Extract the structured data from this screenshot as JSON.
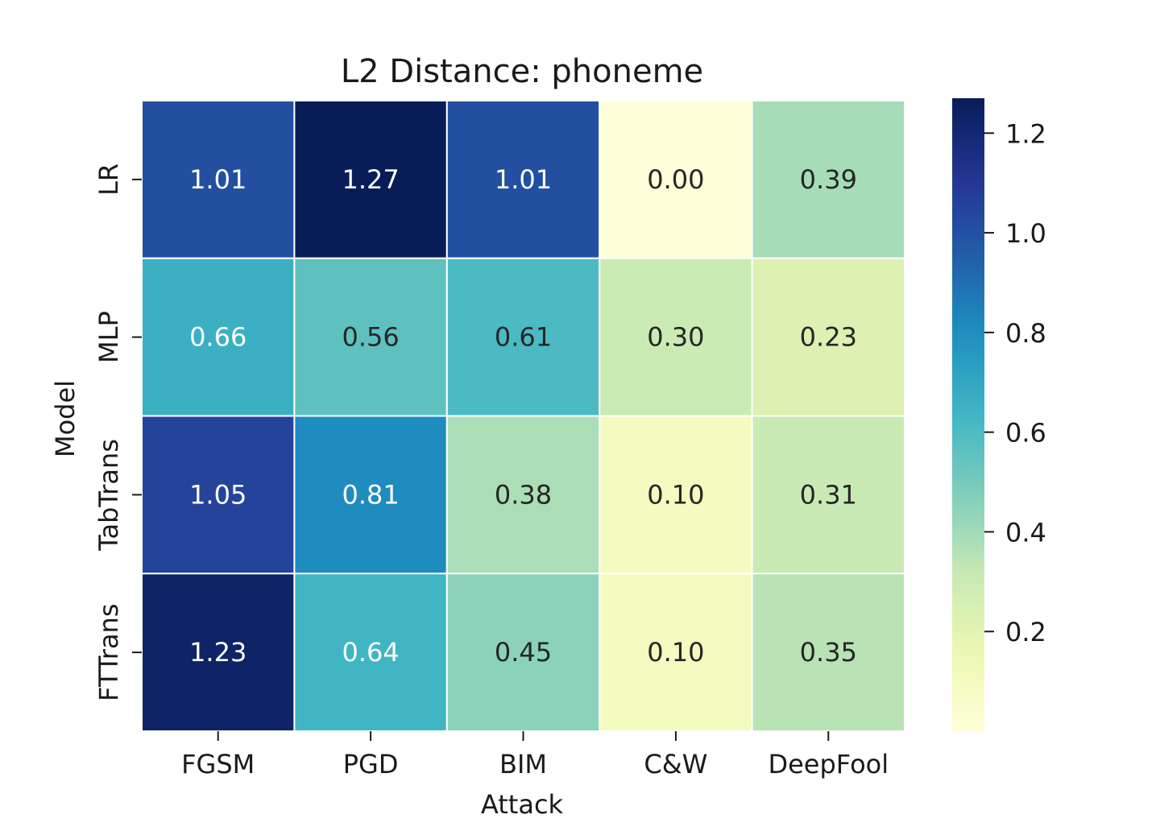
{
  "chart_data": {
    "type": "heatmap",
    "title": "L2 Distance: phoneme",
    "xlabel": "Attack",
    "ylabel": "Model",
    "x_categories": [
      "FGSM",
      "PGD",
      "BIM",
      "C&W",
      "DeepFool"
    ],
    "y_categories": [
      "LR",
      "MLP",
      "TabTrans",
      "FTTrans"
    ],
    "values": [
      [
        1.01,
        1.27,
        1.01,
        0.0,
        0.39
      ],
      [
        0.66,
        0.56,
        0.61,
        0.3,
        0.23
      ],
      [
        1.05,
        0.81,
        0.38,
        0.1,
        0.31
      ],
      [
        1.23,
        0.64,
        0.45,
        0.1,
        0.35
      ]
    ],
    "cell_labels": [
      [
        "1.01",
        "1.27",
        "1.01",
        "0.00",
        "0.39"
      ],
      [
        "0.66",
        "0.56",
        "0.61",
        "0.30",
        "0.23"
      ],
      [
        "1.05",
        "0.81",
        "0.38",
        "0.10",
        "0.31"
      ],
      [
        "1.23",
        "0.64",
        "0.45",
        "0.10",
        "0.35"
      ]
    ],
    "colormap": "YlGnBu",
    "vmin": 0.0,
    "vmax": 1.27,
    "colorbar_ticks": [
      0.2,
      0.4,
      0.6,
      0.8,
      1.0,
      1.2
    ],
    "colorbar_tick_labels": [
      "0.2",
      "0.4",
      "0.6",
      "0.8",
      "1.0",
      "1.2"
    ],
    "grid": true,
    "cell_separator_color": "#ffffff",
    "colorbar_position": "right"
  }
}
